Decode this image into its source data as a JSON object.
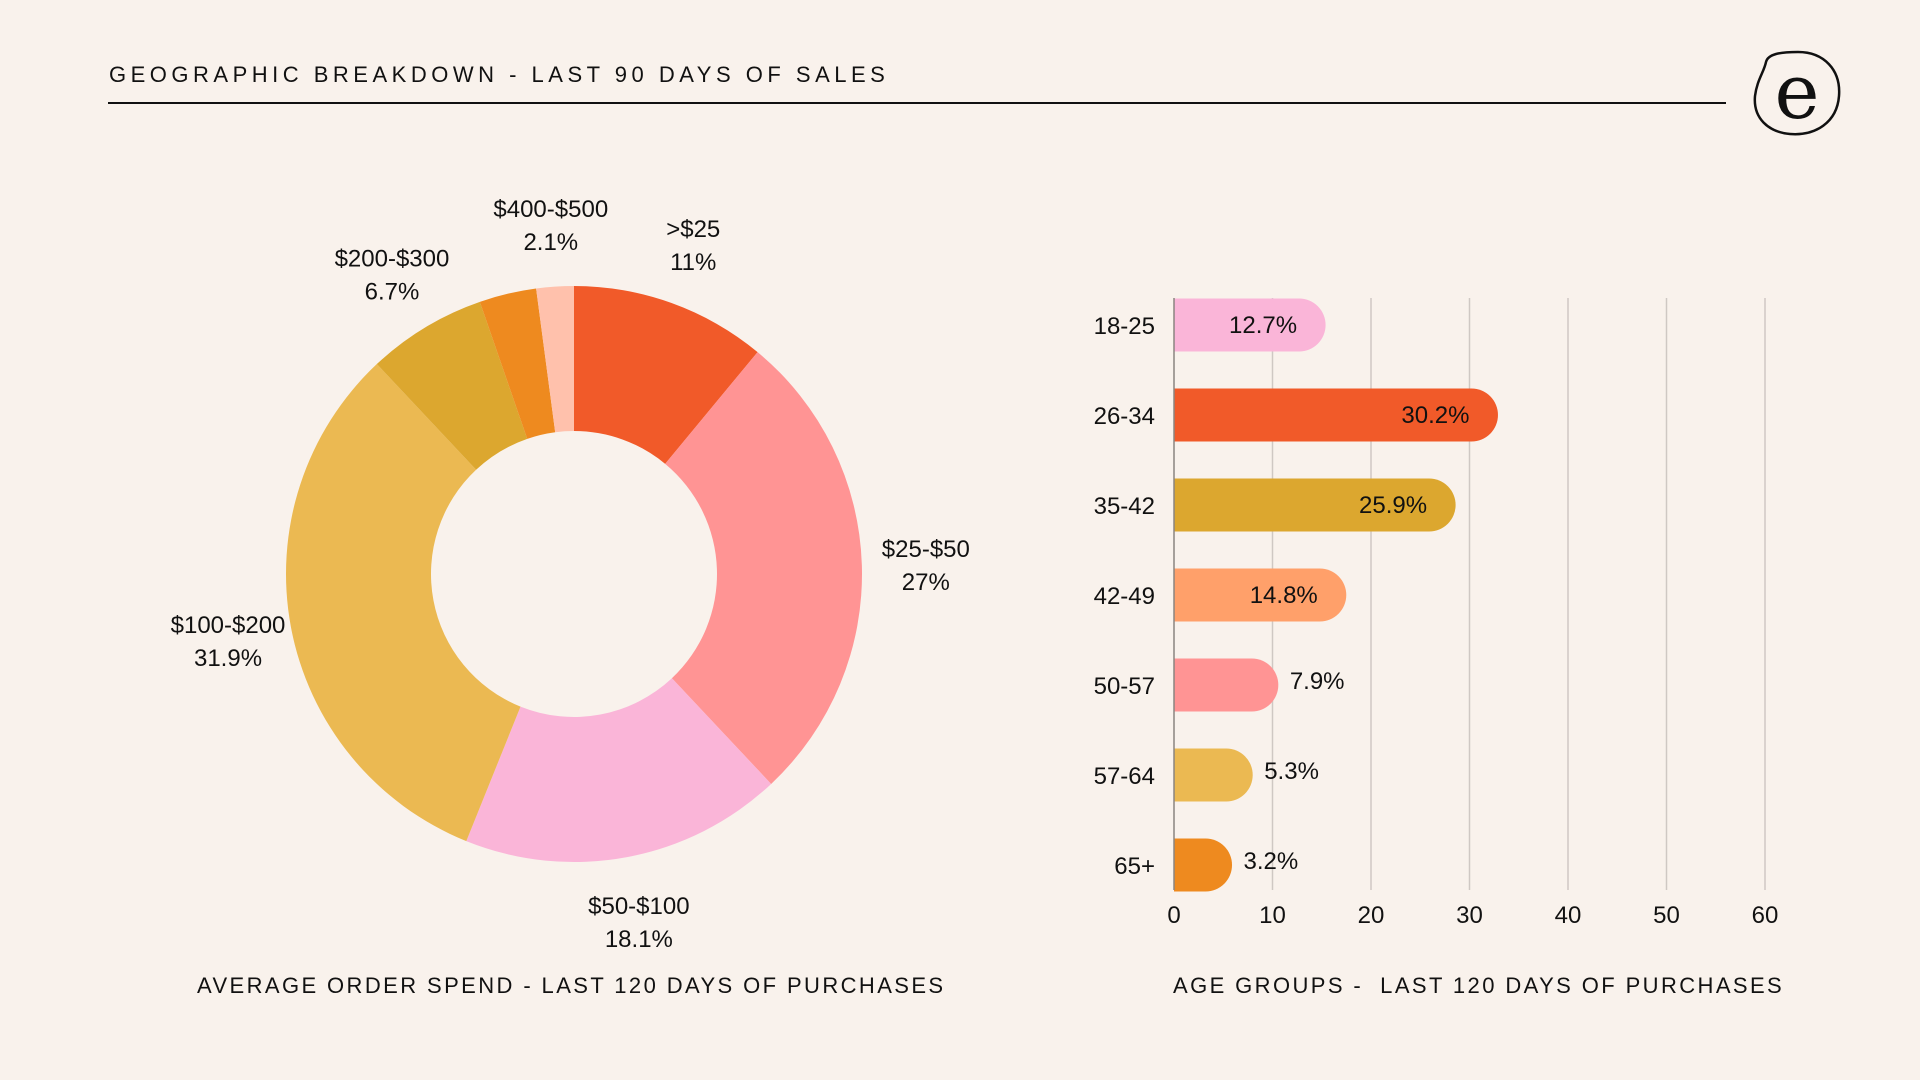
{
  "header": {
    "title": "GEOGRAPHIC BREAKDOWN - LAST 90 DAYS OF SALES",
    "logo_letter": "e"
  },
  "chart_data": [
    {
      "type": "pie",
      "variant": "donut",
      "title": "AVERAGE ORDER SPEND - LAST 120 DAYS OF PURCHASES",
      "slices": [
        {
          "label": ">$25",
          "value": 11,
          "display": "11%",
          "color": "#f15a29"
        },
        {
          "label": "$25-$50",
          "value": 27,
          "display": "27%",
          "color": "#ff9494"
        },
        {
          "label": "$50-$100",
          "value": 18.1,
          "display": "18.1%",
          "color": "#fab5d8"
        },
        {
          "label": "$100-$200",
          "value": 31.9,
          "display": "31.9%",
          "color": "#ebb952"
        },
        {
          "label": "$200-$300",
          "value": 6.7,
          "display": "6.7%",
          "color": "#dca72f"
        },
        {
          "label": "",
          "value": 3.2,
          "display": "",
          "color": "#ee8a1f"
        },
        {
          "label": "$400-$500",
          "value": 2.1,
          "display": "2.1%",
          "color": "#ffc1ac"
        }
      ],
      "start": "12 o'clock",
      "direction": "clockwise"
    },
    {
      "type": "bar",
      "orientation": "horizontal",
      "title": "AGE GROUPS -  LAST 120 DAYS OF PURCHASES",
      "categories": [
        "18-25",
        "26-34",
        "35-42",
        "42-49",
        "50-57",
        "57-64",
        "65+"
      ],
      "values": [
        12.7,
        30.2,
        25.9,
        14.8,
        7.9,
        5.3,
        3.2
      ],
      "value_labels": [
        "12.7%",
        "30.2%",
        "25.9%",
        "14.8%",
        "7.9%",
        "5.3%",
        "3.2%"
      ],
      "colors": [
        "#fab5d8",
        "#f15a29",
        "#dca72f",
        "#ffa06a",
        "#ff9494",
        "#ebb952",
        "#ee8a1f"
      ],
      "xlim": [
        0,
        60
      ],
      "xticks": [
        0,
        10,
        20,
        30,
        40,
        50,
        60
      ],
      "grid": true,
      "xlabel": "",
      "ylabel": ""
    }
  ]
}
